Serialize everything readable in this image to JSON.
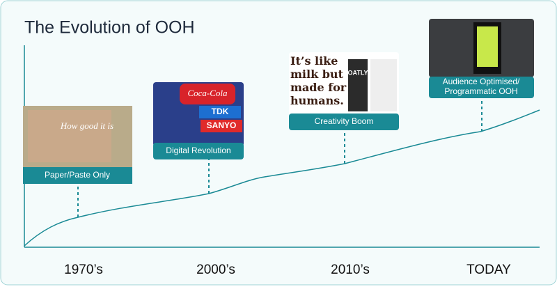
{
  "header": {
    "title": "The Evolution of OOH"
  },
  "milestones": [
    {
      "label": "Paper/Paste Only",
      "era": "1970’s",
      "image_text": "How good it is"
    },
    {
      "label": "Digital Revolution",
      "era": "2000’s",
      "image_text": [
        "Coca-Cola",
        "TDK",
        "SANYO"
      ]
    },
    {
      "label": "Creativity Boom",
      "era": "2010’s",
      "image_text": [
        "It’s like milk but made for humans.",
        "OATLY"
      ]
    },
    {
      "label": [
        "Audience Optimised/",
        "Programmatic OOH"
      ],
      "era": "TODAY"
    }
  ]
}
